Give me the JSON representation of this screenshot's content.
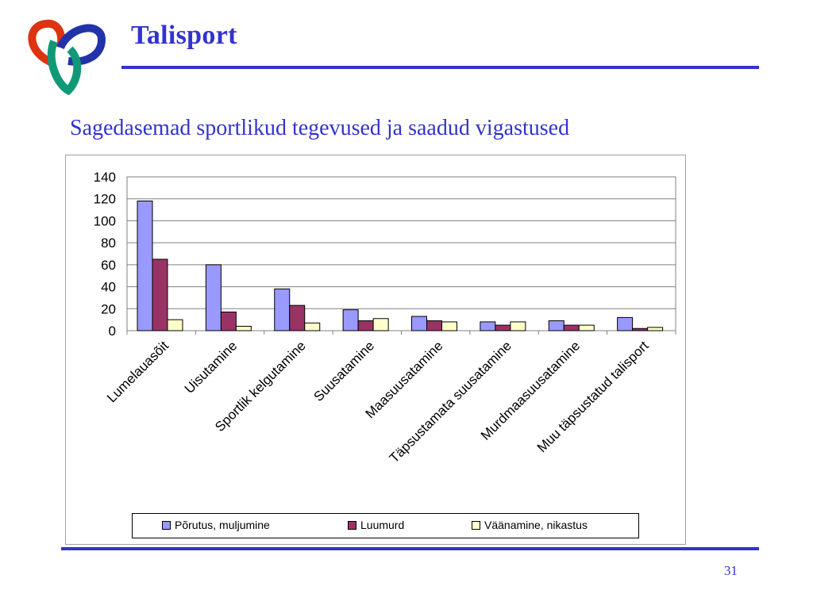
{
  "header": {
    "title": "Talisport"
  },
  "subtitle": "Sagedasemad sportlikud tegevused ja saadud vigastused",
  "page_number": "31",
  "colors": {
    "title": "#3333cc",
    "logo_red": "#dd3311",
    "logo_blue": "#2233aa",
    "logo_green": "#119977"
  },
  "chart_data": {
    "type": "bar",
    "title": "",
    "xlabel": "",
    "ylabel": "",
    "ylim": [
      0,
      140
    ],
    "yticks": [
      "0",
      "20",
      "40",
      "60",
      "80",
      "100",
      "120",
      "140"
    ],
    "grid": true,
    "legend_position": "bottom",
    "categories": [
      "Lumelauasõit",
      "Uisutamine",
      "Sportlik kelgutamine",
      "Suusatamine",
      "Maasuusatamine",
      "Täpsustamata suusatamine",
      "Murdmaasuusatamine",
      "Muu täpsustatud talisport"
    ],
    "series": [
      {
        "name": "Põrutus, muljumine",
        "color": "#9999ff",
        "values": [
          118,
          60,
          38,
          19,
          13,
          8,
          9,
          12
        ]
      },
      {
        "name": "Luumurd",
        "color": "#993366",
        "values": [
          65,
          17,
          23,
          9,
          9,
          5,
          5,
          2
        ]
      },
      {
        "name": "Väänamine, nikastus",
        "color": "#ffffcc",
        "values": [
          10,
          4,
          7,
          11,
          8,
          8,
          5,
          3
        ]
      }
    ]
  }
}
